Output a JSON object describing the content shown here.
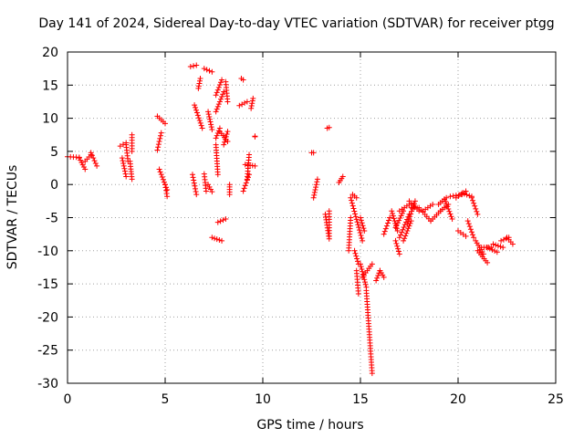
{
  "chart_data": {
    "type": "scatter",
    "title": "Day 141 of 2024, Sidereal Day-to-day VTEC variation (SDTVAR) for receiver ptgg",
    "xlabel": "GPS time / hours",
    "ylabel": "SDTVAR / TECUs",
    "xlim": [
      0,
      25
    ],
    "ylim": [
      -30,
      20
    ],
    "xticks": [
      0,
      5,
      10,
      15,
      20,
      25
    ],
    "yticks": [
      -30,
      -25,
      -20,
      -15,
      -10,
      -5,
      0,
      5,
      10,
      15,
      20
    ],
    "grid": true,
    "marker": "+",
    "color": "#ff0000",
    "series": [
      {
        "name": "SDTVAR",
        "segments": [
          [
            0.0,
            4.2,
            0.6,
            4.1
          ],
          [
            0.6,
            4.0,
            0.9,
            2.3
          ],
          [
            0.9,
            3.5,
            1.2,
            4.5
          ],
          [
            1.2,
            4.8,
            1.5,
            2.8
          ],
          [
            2.7,
            5.8,
            3.0,
            6.3
          ],
          [
            2.8,
            4.0,
            3.0,
            1.2
          ],
          [
            3.0,
            6.0,
            3.1,
            3.5
          ],
          [
            3.2,
            3.5,
            3.3,
            0.8
          ],
          [
            3.3,
            7.5,
            3.3,
            5.0
          ],
          [
            4.6,
            10.3,
            5.0,
            9.2
          ],
          [
            4.8,
            7.8,
            4.6,
            5.2
          ],
          [
            4.7,
            2.3,
            5.1,
            -0.8
          ],
          [
            5.0,
            0.0,
            5.1,
            -1.8
          ],
          [
            6.3,
            17.8,
            6.6,
            18.0
          ],
          [
            6.4,
            1.5,
            6.6,
            -1.5
          ],
          [
            6.5,
            12.0,
            6.9,
            8.5
          ],
          [
            6.7,
            14.5,
            6.8,
            16.0
          ],
          [
            7.0,
            17.5,
            7.4,
            17.0
          ],
          [
            7.0,
            1.6,
            7.1,
            -1.0
          ],
          [
            7.2,
            11.0,
            7.4,
            8.3
          ],
          [
            7.2,
            0.0,
            7.4,
            -1.1
          ],
          [
            7.4,
            -8.0,
            7.9,
            -8.5
          ],
          [
            7.6,
            13.5,
            7.9,
            15.8
          ],
          [
            7.6,
            11.0,
            8.0,
            14.0
          ],
          [
            7.6,
            7.0,
            7.8,
            8.5
          ],
          [
            7.6,
            6.0,
            7.7,
            1.5
          ],
          [
            7.7,
            -5.7,
            8.1,
            -5.2
          ],
          [
            7.8,
            8.0,
            8.2,
            6.5
          ],
          [
            8.1,
            15.5,
            8.2,
            12.5
          ],
          [
            8.0,
            6.0,
            8.2,
            8.0
          ],
          [
            8.3,
            0.0,
            8.3,
            -1.5
          ],
          [
            8.8,
            11.9,
            9.2,
            12.5
          ],
          [
            8.9,
            16.0,
            9.0,
            15.8
          ],
          [
            9.0,
            -1.0,
            9.3,
            1.5
          ],
          [
            9.1,
            3.0,
            9.6,
            2.8
          ],
          [
            9.3,
            4.5,
            9.2,
            0.8
          ],
          [
            9.5,
            13.0,
            9.4,
            11.5
          ],
          [
            9.6,
            7.3,
            9.6,
            7.2
          ],
          [
            12.5,
            4.8,
            12.6,
            4.8
          ],
          [
            12.6,
            -2.0,
            12.8,
            0.8
          ],
          [
            13.2,
            -4.5,
            13.4,
            -8.2
          ],
          [
            13.4,
            -7.8,
            13.4,
            -4.0
          ],
          [
            13.3,
            8.5,
            13.4,
            8.6
          ],
          [
            13.9,
            0.3,
            14.1,
            1.2
          ],
          [
            14.4,
            -10.0,
            14.5,
            -5.0
          ],
          [
            14.5,
            -2.0,
            15.1,
            -8.5
          ],
          [
            14.6,
            -1.5,
            14.8,
            -2.0
          ],
          [
            15.0,
            -5.0,
            15.2,
            -7.0
          ],
          [
            14.7,
            -10.0,
            14.9,
            -12.0
          ],
          [
            14.8,
            -13.0,
            14.9,
            -16.5
          ],
          [
            15.0,
            -12.0,
            15.3,
            -15.5
          ],
          [
            15.1,
            -14.0,
            15.6,
            -12.0
          ],
          [
            15.3,
            -16.0,
            15.6,
            -28.5
          ],
          [
            15.8,
            -14.5,
            16.0,
            -13.0
          ],
          [
            16.0,
            -13.0,
            16.2,
            -14.0
          ],
          [
            16.2,
            -7.5,
            16.5,
            -5.0
          ],
          [
            16.6,
            -4.0,
            16.9,
            -7.0
          ],
          [
            16.8,
            -6.5,
            17.2,
            -4.0
          ],
          [
            17.0,
            -4.0,
            17.5,
            -3.0
          ],
          [
            16.8,
            -8.5,
            17.0,
            -10.5
          ],
          [
            17.0,
            -8.0,
            17.5,
            -4.5
          ],
          [
            17.2,
            -8.5,
            17.6,
            -5.5
          ],
          [
            17.6,
            -3.5,
            17.9,
            -3.5
          ],
          [
            17.5,
            -2.5,
            18.0,
            -4.0
          ],
          [
            17.4,
            -6.0,
            17.8,
            -2.5
          ],
          [
            18.0,
            -3.5,
            18.6,
            -5.5
          ],
          [
            18.2,
            -4.0,
            18.7,
            -3.0
          ],
          [
            18.6,
            -5.5,
            19.1,
            -4.0
          ],
          [
            19.0,
            -3.0,
            19.4,
            -2.0
          ],
          [
            19.1,
            -4.0,
            19.5,
            -3.0
          ],
          [
            19.3,
            -2.2,
            19.7,
            -5.2
          ],
          [
            19.6,
            -1.8,
            20.2,
            -1.5
          ],
          [
            19.9,
            -2.0,
            20.4,
            -1.0
          ],
          [
            20.2,
            -1.3,
            20.7,
            -1.8
          ],
          [
            20.0,
            -7.0,
            20.4,
            -7.8
          ],
          [
            20.5,
            -5.5,
            20.8,
            -8.0
          ],
          [
            20.7,
            -2.0,
            21.0,
            -4.5
          ],
          [
            20.9,
            -8.5,
            21.3,
            -10.5
          ],
          [
            21.0,
            -10.0,
            21.5,
            -11.8
          ],
          [
            21.2,
            -9.5,
            21.7,
            -9.5
          ],
          [
            21.5,
            -9.5,
            22.0,
            -10.2
          ],
          [
            21.8,
            -9.0,
            22.3,
            -9.5
          ],
          [
            22.2,
            -8.5,
            22.6,
            -8.0
          ],
          [
            22.5,
            -8.0,
            22.8,
            -9.0
          ]
        ]
      }
    ]
  }
}
